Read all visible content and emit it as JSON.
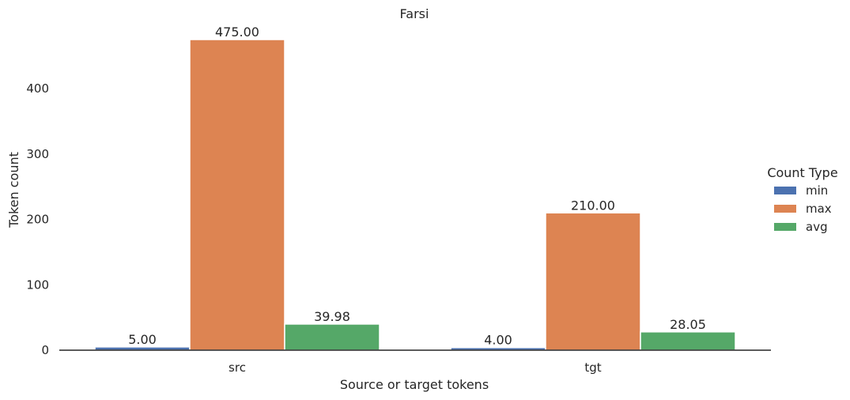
{
  "chart_data": {
    "type": "bar",
    "title": "Farsi",
    "xlabel": "Source or target tokens",
    "ylabel": "Token count",
    "categories": [
      "src",
      "tgt"
    ],
    "ylim": [
      0,
      500
    ],
    "yticks": [
      0,
      100,
      200,
      300,
      400
    ],
    "grid": false,
    "legend": {
      "title": "Count Type",
      "position": "right"
    },
    "series": [
      {
        "name": "min",
        "color": "#4c72b0",
        "values": [
          5.0,
          4.0
        ],
        "labels": [
          "5.00",
          "4.00"
        ]
      },
      {
        "name": "max",
        "color": "#dd8452",
        "values": [
          475.0,
          210.0
        ],
        "labels": [
          "475.00",
          "210.00"
        ]
      },
      {
        "name": "avg",
        "color": "#55a868",
        "values": [
          39.98,
          28.05
        ],
        "labels": [
          "39.98",
          "28.05"
        ]
      }
    ]
  }
}
